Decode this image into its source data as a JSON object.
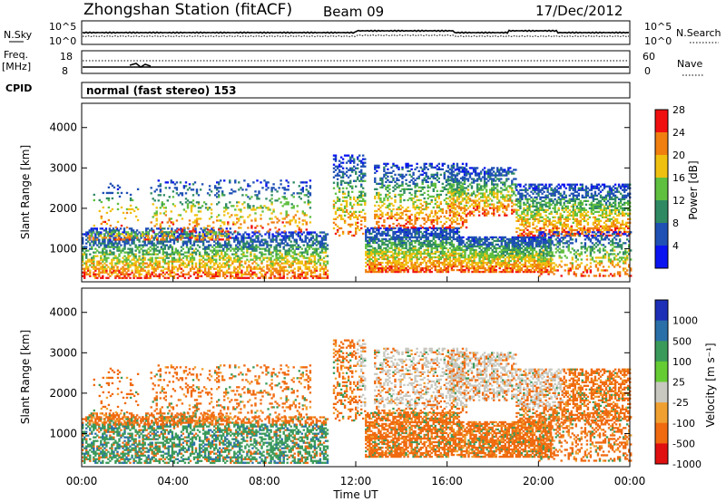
{
  "header": {
    "title": "Zhongshan Station (fitACF)",
    "beam": "Beam 09",
    "date": "17/Dec/2012"
  },
  "top_panels": {
    "nsky_label": "N.Sky",
    "nsky_ticks": [
      "10^5",
      "10^0"
    ],
    "nsearch_label": "N.Search",
    "nsearch_ticks": [
      "10^5",
      "10^0"
    ],
    "freq_label_line1": "Freq.",
    "freq_label_line2": "[MHz]",
    "freq_ticks": [
      "18",
      "8"
    ],
    "nave_label": "Nave",
    "nave_ticks": [
      "60",
      "0"
    ],
    "cpid_label": "CPID",
    "cpid_text": "normal (fast stereo) 153"
  },
  "chart_data": [
    {
      "type": "heatmap",
      "name": "power",
      "ylabel": "Slant Range [km]",
      "yticks": [
        1000,
        2000,
        3000,
        4000
      ],
      "ylim": [
        180,
        4600
      ],
      "xlim": [
        0,
        24
      ],
      "colorbar_label": "Power [dB]",
      "colorbar_ticks": [
        "4",
        "8",
        "12",
        "16",
        "20",
        "24",
        "28"
      ],
      "colorbar_colors": [
        "#0a14f0",
        "#1f50b4",
        "#2f8a64",
        "#5fbf3f",
        "#f0c010",
        "#f07f10",
        "#f01010"
      ]
    },
    {
      "type": "heatmap",
      "name": "velocity",
      "ylabel": "Slant Range [km]",
      "yticks": [
        1000,
        2000,
        3000,
        4000
      ],
      "ylim": [
        180,
        4600
      ],
      "xlim": [
        0,
        24
      ],
      "colorbar_label": "Velocity [m s⁻¹]",
      "colorbar_ticks": [
        "1000",
        "500",
        "100",
        "25",
        "-25",
        "-100",
        "-500",
        "-1000"
      ],
      "colorbar_colors": [
        "#1c2fb6",
        "#2a6fa8",
        "#3a9a5a",
        "#66cc33",
        "#c8c8c0",
        "#f0a030",
        "#f06a10",
        "#e01010"
      ]
    }
  ],
  "x_axis": {
    "label": "Time UT",
    "ticks": [
      "00:00",
      "04:00",
      "08:00",
      "12:00",
      "16:00",
      "20:00",
      "00:00"
    ]
  },
  "colors": {
    "power_bg": "#ffffff",
    "ground_scatter": "#bdbdb5"
  }
}
